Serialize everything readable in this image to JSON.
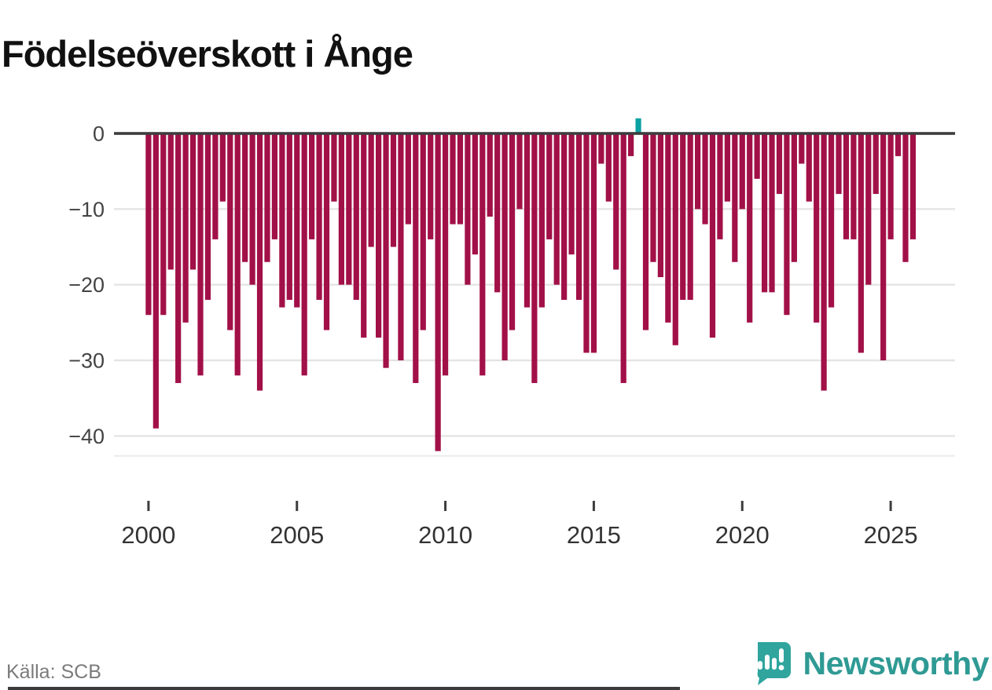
{
  "header": {
    "title": "Födelseöverskott i Ånge"
  },
  "footer": {
    "source_label": "Källa: SCB",
    "brand_name": "Newsworthy"
  },
  "colors": {
    "bar_negative": "#a21048",
    "bar_positive": "#0ba1a3",
    "zero_line": "#3d3d3d",
    "gridline": "#e4e4e4",
    "baseline": "#ececec",
    "axis_text": "#444444",
    "xaxis_text": "#333333",
    "title_text": "#111111",
    "source_text": "#7b7b7b",
    "brand_teal": "#2f9a94",
    "brand_badge": "#2fa59e"
  },
  "chart_data": {
    "type": "bar",
    "title": "Födelseöverskott i Ånge",
    "x_type": "quarterly",
    "xlabel": "",
    "ylabel": "",
    "ylim": [
      -45,
      3
    ],
    "grid": "horizontal",
    "legend": "none",
    "yticks": [
      0,
      -10,
      -20,
      -30,
      -40
    ],
    "ytick_labels": [
      "0",
      "−10",
      "−20",
      "−30",
      "−40"
    ],
    "xtick_years": [
      "2000",
      "2005",
      "2010",
      "2015",
      "2020",
      "2025"
    ],
    "periods": [
      "2000 Q1",
      "2000 Q2",
      "2000 Q3",
      "2000 Q4",
      "2001 Q1",
      "2001 Q2",
      "2001 Q3",
      "2001 Q4",
      "2002 Q1",
      "2002 Q2",
      "2002 Q3",
      "2002 Q4",
      "2003 Q1",
      "2003 Q2",
      "2003 Q3",
      "2003 Q4",
      "2004 Q1",
      "2004 Q2",
      "2004 Q3",
      "2004 Q4",
      "2005 Q1",
      "2005 Q2",
      "2005 Q3",
      "2005 Q4",
      "2006 Q1",
      "2006 Q2",
      "2006 Q3",
      "2006 Q4",
      "2007 Q1",
      "2007 Q2",
      "2007 Q3",
      "2007 Q4",
      "2008 Q1",
      "2008 Q2",
      "2008 Q3",
      "2008 Q4",
      "2009 Q1",
      "2009 Q2",
      "2009 Q3",
      "2009 Q4",
      "2010 Q1",
      "2010 Q2",
      "2010 Q3",
      "2010 Q4",
      "2011 Q1",
      "2011 Q2",
      "2011 Q3",
      "2011 Q4",
      "2012 Q1",
      "2012 Q2",
      "2012 Q3",
      "2012 Q4",
      "2013 Q1",
      "2013 Q2",
      "2013 Q3",
      "2013 Q4",
      "2014 Q1",
      "2014 Q2",
      "2014 Q3",
      "2014 Q4",
      "2015 Q1",
      "2015 Q2",
      "2015 Q3",
      "2015 Q4",
      "2016 Q1",
      "2016 Q2",
      "2016 Q3",
      "2016 Q4",
      "2017 Q1",
      "2017 Q2",
      "2017 Q3",
      "2017 Q4",
      "2018 Q1",
      "2018 Q2",
      "2018 Q3",
      "2018 Q4",
      "2019 Q1",
      "2019 Q2",
      "2019 Q3",
      "2019 Q4",
      "2020 Q1",
      "2020 Q2",
      "2020 Q3",
      "2020 Q4",
      "2021 Q1",
      "2021 Q2",
      "2021 Q3",
      "2021 Q4",
      "2022 Q1",
      "2022 Q2",
      "2022 Q3",
      "2022 Q4",
      "2023 Q1",
      "2023 Q2",
      "2023 Q3",
      "2023 Q4",
      "2024 Q1",
      "2024 Q2",
      "2024 Q3",
      "2024 Q4",
      "2025 Q1",
      "2025 Q2",
      "2025 Q3",
      "2025 Q4"
    ],
    "values": [
      -24,
      -39,
      -24,
      -18,
      -33,
      -25,
      -18,
      -32,
      -22,
      -14,
      -9,
      -26,
      -32,
      -17,
      -20,
      -34,
      -17,
      -14,
      -23,
      -22,
      -23,
      -32,
      -14,
      -22,
      -26,
      -9,
      -20,
      -20,
      -22,
      -27,
      -15,
      -27,
      -31,
      -15,
      -30,
      -12,
      -33,
      -26,
      -14,
      -42,
      -32,
      -12,
      -12,
      -20,
      -16,
      -32,
      -11,
      -21,
      -30,
      -26,
      -10,
      -23,
      -33,
      -23,
      -14,
      -20,
      -22,
      -16,
      -22,
      -29,
      -29,
      -4,
      -9,
      -18,
      -33,
      -3,
      2,
      -26,
      -17,
      -19,
      -25,
      -28,
      -22,
      -22,
      -10,
      -12,
      -27,
      -14,
      -9,
      -17,
      -10,
      -25,
      -6,
      -21,
      -21,
      -8,
      -24,
      -17,
      -4,
      -9,
      -25,
      -34,
      -23,
      -8,
      -14,
      -14,
      -29,
      -20,
      -8,
      -30,
      -14,
      -3,
      -17,
      -14
    ]
  }
}
